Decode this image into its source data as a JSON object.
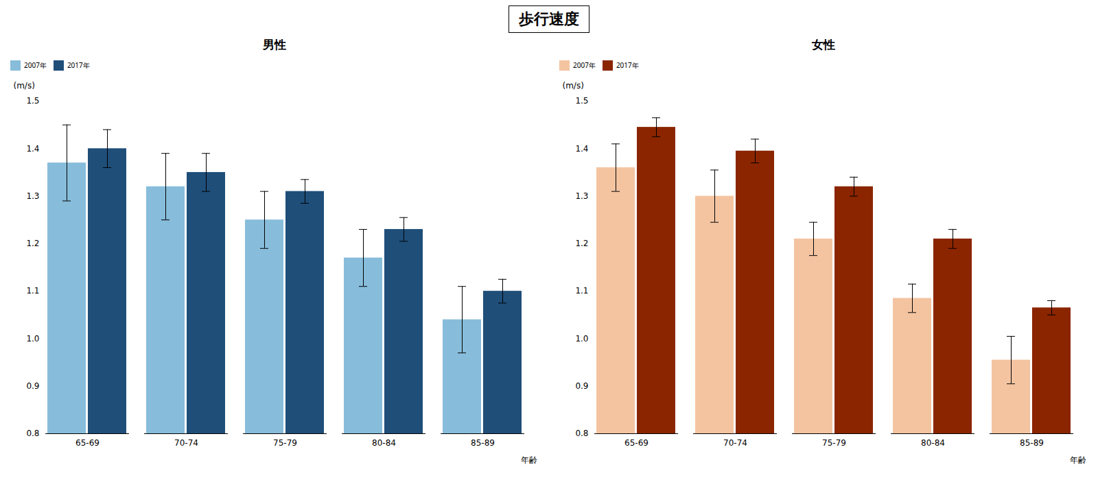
{
  "title": "歩行速度",
  "chart_data": [
    {
      "type": "bar",
      "title": "男性",
      "categories": [
        "65-69",
        "70-74",
        "75-79",
        "80-84",
        "85-89"
      ],
      "xlabel": "年齢",
      "ylabel": "(m/s)",
      "ylim": [
        0.8,
        1.5
      ],
      "yticks": [
        0.8,
        0.9,
        {
          "value": 1.0,
          "label": "1.0"
        },
        1.1,
        1.2,
        1.3,
        1.4,
        1.5
      ],
      "grid": false,
      "legend": "top",
      "series": [
        {
          "name": "2007年",
          "color": "#87BDDB",
          "values": [
            1.37,
            1.32,
            1.25,
            1.17,
            1.04
          ],
          "errors": [
            0.08,
            0.07,
            0.06,
            0.06,
            0.07
          ]
        },
        {
          "name": "2017年",
          "color": "#1F4E79",
          "values": [
            1.4,
            1.35,
            1.31,
            1.23,
            1.1
          ],
          "errors": [
            0.04,
            0.04,
            0.025,
            0.025,
            0.025
          ]
        }
      ]
    },
    {
      "type": "bar",
      "title": "女性",
      "categories": [
        "65-69",
        "70-74",
        "75-79",
        "80-84",
        "85-89"
      ],
      "xlabel": "年齢",
      "ylabel": "(m/s)",
      "ylim": [
        0.8,
        1.5
      ],
      "yticks": [
        0.8,
        0.9,
        {
          "value": 1.0,
          "label": "1.0"
        },
        1.1,
        1.2,
        1.3,
        1.4,
        1.5
      ],
      "grid": false,
      "legend": "top",
      "series": [
        {
          "name": "2007年",
          "color": "#F4C4A1",
          "values": [
            1.36,
            1.3,
            1.21,
            1.085,
            0.955
          ],
          "errors": [
            0.05,
            0.055,
            0.035,
            0.03,
            0.05
          ]
        },
        {
          "name": "2017年",
          "color": "#8B2500",
          "values": [
            1.445,
            1.395,
            1.32,
            1.21,
            1.065
          ],
          "errors": [
            0.02,
            0.025,
            0.02,
            0.02,
            0.015
          ]
        }
      ]
    }
  ]
}
